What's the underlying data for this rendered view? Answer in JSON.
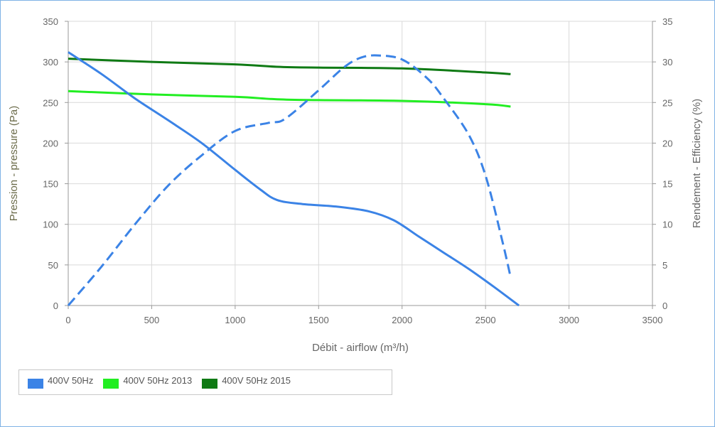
{
  "chart_data": {
    "type": "line",
    "xlabel": "Débit - airflow (m³/h)",
    "ylabel_left": "Pression - pressure (Pa)",
    "ylabel_right": "Rendement - Efficiency (%)",
    "xlim": [
      0,
      3500
    ],
    "ylim_left": [
      0,
      350
    ],
    "ylim_right": [
      0,
      35
    ],
    "x_ticks": [
      "0",
      "500",
      "1000",
      "1500",
      "2000",
      "2500",
      "3000",
      "3500"
    ],
    "y_left_ticks": [
      "0",
      "50",
      "100",
      "150",
      "200",
      "250",
      "300",
      "350"
    ],
    "y_right_ticks": [
      "0",
      "5",
      "10",
      "15",
      "20",
      "25",
      "30",
      "35"
    ],
    "grid": true,
    "legend_position": "bottom-left",
    "series": [
      {
        "name": "400V 50Hz",
        "axis": "left",
        "style": "solid",
        "color": "#3b83e6",
        "points": [
          [
            0,
            312
          ],
          [
            200,
            285
          ],
          [
            400,
            255
          ],
          [
            600,
            228
          ],
          [
            800,
            200
          ],
          [
            1000,
            167
          ],
          [
            1150,
            143
          ],
          [
            1250,
            130
          ],
          [
            1400,
            125
          ],
          [
            1600,
            122
          ],
          [
            1800,
            116
          ],
          [
            1950,
            105
          ],
          [
            2100,
            85
          ],
          [
            2250,
            65
          ],
          [
            2400,
            45
          ],
          [
            2550,
            23
          ],
          [
            2700,
            0
          ]
        ]
      },
      {
        "name": "400V 50Hz",
        "axis": "right",
        "style": "dashed",
        "color": "#3b83e6",
        "points": [
          [
            0,
            0
          ],
          [
            200,
            4.8
          ],
          [
            400,
            10
          ],
          [
            600,
            14.8
          ],
          [
            800,
            18.5
          ],
          [
            1000,
            21.5
          ],
          [
            1200,
            22.5
          ],
          [
            1300,
            23
          ],
          [
            1500,
            26.5
          ],
          [
            1650,
            29.3
          ],
          [
            1750,
            30.5
          ],
          [
            1850,
            30.8
          ],
          [
            2000,
            30.3
          ],
          [
            2150,
            28
          ],
          [
            2250,
            25.5
          ],
          [
            2400,
            21
          ],
          [
            2500,
            16
          ],
          [
            2600,
            8
          ],
          [
            2650,
            3.5
          ]
        ]
      },
      {
        "name": "400V 50Hz  2013",
        "axis": "left",
        "style": "solid",
        "color": "#22ee22",
        "points": [
          [
            0,
            264
          ],
          [
            500,
            260
          ],
          [
            1000,
            257
          ],
          [
            1250,
            254
          ],
          [
            1500,
            253
          ],
          [
            2000,
            252
          ],
          [
            2500,
            248
          ],
          [
            2650,
            245
          ]
        ]
      },
      {
        "name": "400V 50Hz  2015",
        "axis": "left",
        "style": "solid",
        "color": "#0f7a14",
        "points": [
          [
            0,
            304
          ],
          [
            500,
            300
          ],
          [
            1000,
            297
          ],
          [
            1250,
            294
          ],
          [
            1500,
            293
          ],
          [
            2000,
            292
          ],
          [
            2500,
            287
          ],
          [
            2650,
            285
          ]
        ]
      }
    ]
  },
  "legend": [
    {
      "label": "400V 50Hz",
      "color": "#3b83e6"
    },
    {
      "label": "400V 50Hz  2013",
      "color": "#22ee22"
    },
    {
      "label": "400V 50Hz  2015",
      "color": "#0f7a14"
    }
  ]
}
